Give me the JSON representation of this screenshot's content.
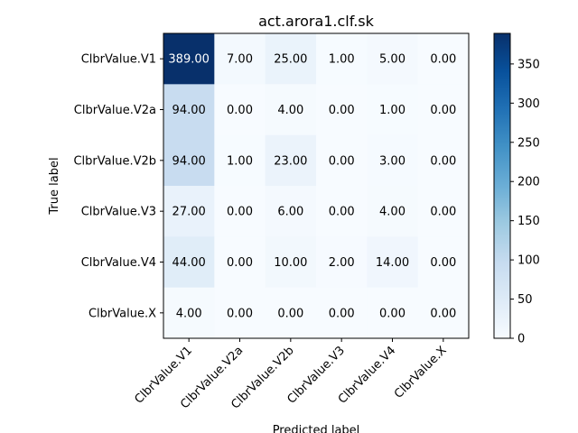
{
  "chart_data": {
    "type": "heatmap",
    "title": "act.arora1.clf.sk",
    "xlabel": "Predicted label",
    "ylabel": "True label",
    "row_labels": [
      "ClbrValue.V1",
      "ClbrValue.V2a",
      "ClbrValue.V2b",
      "ClbrValue.V3",
      "ClbrValue.V4",
      "ClbrValue.X"
    ],
    "col_labels": [
      "ClbrValue.V1",
      "ClbrValue.V2a",
      "ClbrValue.V2b",
      "ClbrValue.V3",
      "ClbrValue.V4",
      "ClbrValue.X"
    ],
    "values": [
      [
        389,
        7,
        25,
        1,
        5,
        0
      ],
      [
        94,
        0,
        4,
        0,
        1,
        0
      ],
      [
        94,
        1,
        23,
        0,
        3,
        0
      ],
      [
        27,
        0,
        6,
        0,
        4,
        0
      ],
      [
        44,
        0,
        10,
        2,
        14,
        0
      ],
      [
        4,
        0,
        0,
        0,
        0,
        0
      ]
    ],
    "cell_labels": [
      [
        "389.00",
        "7.00",
        "25.00",
        "1.00",
        "5.00",
        "0.00"
      ],
      [
        "94.00",
        "0.00",
        "4.00",
        "0.00",
        "1.00",
        "0.00"
      ],
      [
        "94.00",
        "1.00",
        "23.00",
        "0.00",
        "3.00",
        "0.00"
      ],
      [
        "27.00",
        "0.00",
        "6.00",
        "0.00",
        "4.00",
        "0.00"
      ],
      [
        "44.00",
        "0.00",
        "10.00",
        "2.00",
        "14.00",
        "0.00"
      ],
      [
        "4.00",
        "0.00",
        "0.00",
        "0.00",
        "0.00",
        "0.00"
      ]
    ],
    "value_range": [
      0,
      389
    ],
    "colormap": "Blues",
    "colorbar_ticks": [
      "0",
      "50",
      "100",
      "150",
      "200",
      "250",
      "300",
      "350"
    ],
    "grid": false
  }
}
